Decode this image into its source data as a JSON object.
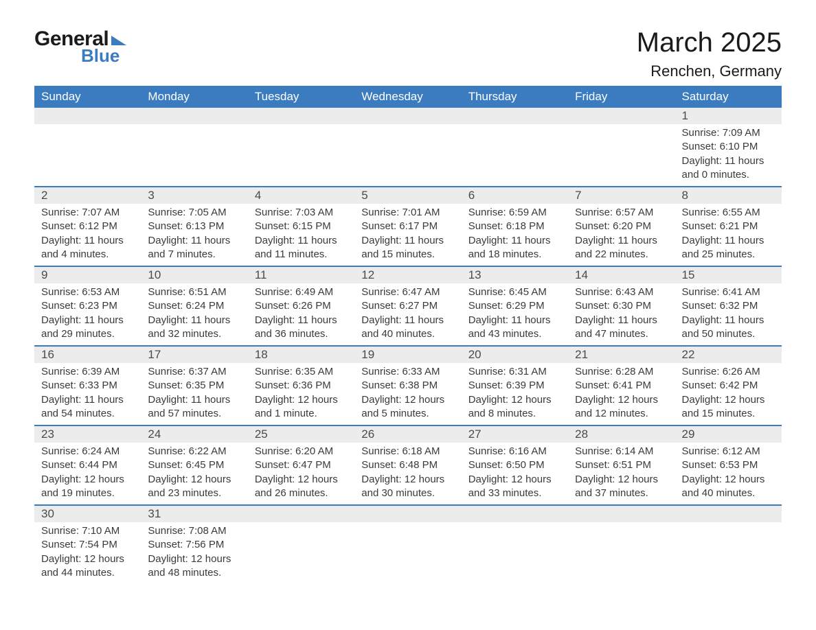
{
  "brand": {
    "word1": "General",
    "word2": "Blue",
    "accent_color": "#3b7bbf"
  },
  "title": "March 2025",
  "location": "Renchen, Germany",
  "day_headers": [
    "Sunday",
    "Monday",
    "Tuesday",
    "Wednesday",
    "Thursday",
    "Friday",
    "Saturday"
  ],
  "colors": {
    "header_bg": "#3b7bbf",
    "header_text": "#ffffff",
    "daynum_bg": "#ececec",
    "text": "#3a3a3a",
    "row_border": "#3b7bbf"
  },
  "labels": {
    "sunrise": "Sunrise:",
    "sunset": "Sunset:",
    "daylight": "Daylight:"
  },
  "weeks": [
    [
      null,
      null,
      null,
      null,
      null,
      null,
      {
        "n": "1",
        "sunrise": "7:09 AM",
        "sunset": "6:10 PM",
        "daylight": "11 hours and 0 minutes."
      }
    ],
    [
      {
        "n": "2",
        "sunrise": "7:07 AM",
        "sunset": "6:12 PM",
        "daylight": "11 hours and 4 minutes."
      },
      {
        "n": "3",
        "sunrise": "7:05 AM",
        "sunset": "6:13 PM",
        "daylight": "11 hours and 7 minutes."
      },
      {
        "n": "4",
        "sunrise": "7:03 AM",
        "sunset": "6:15 PM",
        "daylight": "11 hours and 11 minutes."
      },
      {
        "n": "5",
        "sunrise": "7:01 AM",
        "sunset": "6:17 PM",
        "daylight": "11 hours and 15 minutes."
      },
      {
        "n": "6",
        "sunrise": "6:59 AM",
        "sunset": "6:18 PM",
        "daylight": "11 hours and 18 minutes."
      },
      {
        "n": "7",
        "sunrise": "6:57 AM",
        "sunset": "6:20 PM",
        "daylight": "11 hours and 22 minutes."
      },
      {
        "n": "8",
        "sunrise": "6:55 AM",
        "sunset": "6:21 PM",
        "daylight": "11 hours and 25 minutes."
      }
    ],
    [
      {
        "n": "9",
        "sunrise": "6:53 AM",
        "sunset": "6:23 PM",
        "daylight": "11 hours and 29 minutes."
      },
      {
        "n": "10",
        "sunrise": "6:51 AM",
        "sunset": "6:24 PM",
        "daylight": "11 hours and 32 minutes."
      },
      {
        "n": "11",
        "sunrise": "6:49 AM",
        "sunset": "6:26 PM",
        "daylight": "11 hours and 36 minutes."
      },
      {
        "n": "12",
        "sunrise": "6:47 AM",
        "sunset": "6:27 PM",
        "daylight": "11 hours and 40 minutes."
      },
      {
        "n": "13",
        "sunrise": "6:45 AM",
        "sunset": "6:29 PM",
        "daylight": "11 hours and 43 minutes."
      },
      {
        "n": "14",
        "sunrise": "6:43 AM",
        "sunset": "6:30 PM",
        "daylight": "11 hours and 47 minutes."
      },
      {
        "n": "15",
        "sunrise": "6:41 AM",
        "sunset": "6:32 PM",
        "daylight": "11 hours and 50 minutes."
      }
    ],
    [
      {
        "n": "16",
        "sunrise": "6:39 AM",
        "sunset": "6:33 PM",
        "daylight": "11 hours and 54 minutes."
      },
      {
        "n": "17",
        "sunrise": "6:37 AM",
        "sunset": "6:35 PM",
        "daylight": "11 hours and 57 minutes."
      },
      {
        "n": "18",
        "sunrise": "6:35 AM",
        "sunset": "6:36 PM",
        "daylight": "12 hours and 1 minute."
      },
      {
        "n": "19",
        "sunrise": "6:33 AM",
        "sunset": "6:38 PM",
        "daylight": "12 hours and 5 minutes."
      },
      {
        "n": "20",
        "sunrise": "6:31 AM",
        "sunset": "6:39 PM",
        "daylight": "12 hours and 8 minutes."
      },
      {
        "n": "21",
        "sunrise": "6:28 AM",
        "sunset": "6:41 PM",
        "daylight": "12 hours and 12 minutes."
      },
      {
        "n": "22",
        "sunrise": "6:26 AM",
        "sunset": "6:42 PM",
        "daylight": "12 hours and 15 minutes."
      }
    ],
    [
      {
        "n": "23",
        "sunrise": "6:24 AM",
        "sunset": "6:44 PM",
        "daylight": "12 hours and 19 minutes."
      },
      {
        "n": "24",
        "sunrise": "6:22 AM",
        "sunset": "6:45 PM",
        "daylight": "12 hours and 23 minutes."
      },
      {
        "n": "25",
        "sunrise": "6:20 AM",
        "sunset": "6:47 PM",
        "daylight": "12 hours and 26 minutes."
      },
      {
        "n": "26",
        "sunrise": "6:18 AM",
        "sunset": "6:48 PM",
        "daylight": "12 hours and 30 minutes."
      },
      {
        "n": "27",
        "sunrise": "6:16 AM",
        "sunset": "6:50 PM",
        "daylight": "12 hours and 33 minutes."
      },
      {
        "n": "28",
        "sunrise": "6:14 AM",
        "sunset": "6:51 PM",
        "daylight": "12 hours and 37 minutes."
      },
      {
        "n": "29",
        "sunrise": "6:12 AM",
        "sunset": "6:53 PM",
        "daylight": "12 hours and 40 minutes."
      }
    ],
    [
      {
        "n": "30",
        "sunrise": "7:10 AM",
        "sunset": "7:54 PM",
        "daylight": "12 hours and 44 minutes."
      },
      {
        "n": "31",
        "sunrise": "7:08 AM",
        "sunset": "7:56 PM",
        "daylight": "12 hours and 48 minutes."
      },
      null,
      null,
      null,
      null,
      null
    ]
  ]
}
